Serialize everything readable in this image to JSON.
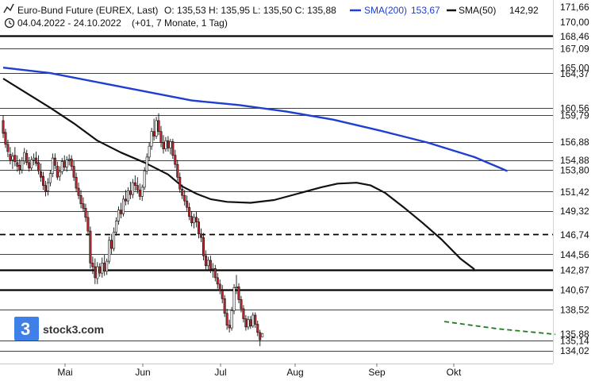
{
  "header": {
    "line1_title": "Euro-Bund Future (EUREX, Last)",
    "ohlc": "O: 135,53  H: 135,95  L: 135,50  C: 135,88",
    "sma200_label": "SMA(200)",
    "sma200_value": "153,67",
    "sma50_label": "SMA(50)",
    "sma50_value": "142,92",
    "date_range": "04.04.2022 - 24.10.2022",
    "period": "(+01, 7 Monate, 1 Tag)"
  },
  "logo": {
    "text": "stock3.com"
  },
  "colors": {
    "sma200": "#1f3fd0",
    "sma50": "#111111",
    "up": "#ffffff",
    "down": "#c0262c",
    "trend": "#1f7a1f",
    "grid": "#000000"
  },
  "chart_data": {
    "type": "candlestick",
    "x_months": [
      "Mai",
      "Jun",
      "Jul",
      "Aug",
      "Sep",
      "Okt"
    ],
    "y_axis_labels": [
      "171,66",
      "170,00",
      "168,46",
      "167,09",
      "165,00",
      "164,37",
      "160,56",
      "159,79",
      "156,88",
      "154,88",
      "153,80",
      "151,42",
      "149,32",
      "146,74",
      "144,56",
      "142,87",
      "140,67",
      "138,52",
      "135,88",
      "135,14",
      "134,02"
    ],
    "ylim": [
      132.6,
      172.4
    ],
    "horizontal_levels": [
      {
        "value": 168.46,
        "style": "thick"
      },
      {
        "value": 167.09,
        "style": "thin"
      },
      {
        "value": 164.37,
        "style": "thin"
      },
      {
        "value": 160.56,
        "style": "thin"
      },
      {
        "value": 159.79,
        "style": "thin"
      },
      {
        "value": 156.88,
        "style": "thin"
      },
      {
        "value": 154.88,
        "style": "thin"
      },
      {
        "value": 153.8,
        "style": "thin"
      },
      {
        "value": 151.42,
        "style": "thin"
      },
      {
        "value": 149.32,
        "style": "thin"
      },
      {
        "value": 146.74,
        "style": "dashed"
      },
      {
        "value": 144.56,
        "style": "thin"
      },
      {
        "value": 142.87,
        "style": "thick"
      },
      {
        "value": 140.67,
        "style": "thick"
      },
      {
        "value": 138.52,
        "style": "thin"
      },
      {
        "value": 135.14,
        "style": "thin"
      },
      {
        "value": 134.02,
        "style": "thin"
      }
    ],
    "candles": [
      {
        "o": 159.2,
        "h": 159.8,
        "l": 157.3,
        "c": 157.8
      },
      {
        "o": 157.9,
        "h": 158.3,
        "l": 156.2,
        "c": 156.6
      },
      {
        "o": 156.6,
        "h": 157.1,
        "l": 155.2,
        "c": 155.8
      },
      {
        "o": 155.5,
        "h": 156.3,
        "l": 154.4,
        "c": 154.9
      },
      {
        "o": 154.9,
        "h": 155.7,
        "l": 153.9,
        "c": 155.3
      },
      {
        "o": 155.4,
        "h": 156.3,
        "l": 154.2,
        "c": 154.7
      },
      {
        "o": 154.6,
        "h": 155.4,
        "l": 153.6,
        "c": 154.2
      },
      {
        "o": 154.3,
        "h": 155.0,
        "l": 153.3,
        "c": 153.8
      },
      {
        "o": 153.8,
        "h": 155.2,
        "l": 153.4,
        "c": 154.8
      },
      {
        "o": 154.8,
        "h": 156.2,
        "l": 154.4,
        "c": 155.7
      },
      {
        "o": 155.6,
        "h": 156.0,
        "l": 154.3,
        "c": 154.6
      },
      {
        "o": 154.6,
        "h": 155.2,
        "l": 153.6,
        "c": 154.0
      },
      {
        "o": 154.0,
        "h": 155.3,
        "l": 153.7,
        "c": 154.9
      },
      {
        "o": 154.9,
        "h": 155.6,
        "l": 154.3,
        "c": 155.1
      },
      {
        "o": 155.1,
        "h": 155.8,
        "l": 154.2,
        "c": 154.5
      },
      {
        "o": 154.6,
        "h": 155.4,
        "l": 153.3,
        "c": 153.7
      },
      {
        "o": 153.6,
        "h": 154.5,
        "l": 152.5,
        "c": 153.0
      },
      {
        "o": 153.1,
        "h": 153.6,
        "l": 151.6,
        "c": 152.1
      },
      {
        "o": 152.1,
        "h": 152.6,
        "l": 150.9,
        "c": 151.4
      },
      {
        "o": 151.5,
        "h": 152.9,
        "l": 151.0,
        "c": 152.4
      },
      {
        "o": 152.4,
        "h": 153.8,
        "l": 152.0,
        "c": 153.4
      },
      {
        "o": 153.4,
        "h": 155.6,
        "l": 153.0,
        "c": 155.1
      },
      {
        "o": 155.1,
        "h": 155.6,
        "l": 153.9,
        "c": 154.3
      },
      {
        "o": 154.2,
        "h": 154.7,
        "l": 152.7,
        "c": 153.0
      },
      {
        "o": 153.1,
        "h": 154.2,
        "l": 152.6,
        "c": 153.6
      },
      {
        "o": 153.6,
        "h": 155.1,
        "l": 153.3,
        "c": 154.7
      },
      {
        "o": 154.7,
        "h": 155.4,
        "l": 153.7,
        "c": 154.1
      },
      {
        "o": 154.1,
        "h": 155.3,
        "l": 153.6,
        "c": 154.9
      },
      {
        "o": 154.9,
        "h": 155.5,
        "l": 154.3,
        "c": 155.0
      },
      {
        "o": 155.0,
        "h": 155.4,
        "l": 153.8,
        "c": 154.2
      },
      {
        "o": 154.2,
        "h": 154.8,
        "l": 152.6,
        "c": 153.0
      },
      {
        "o": 153.0,
        "h": 153.5,
        "l": 151.4,
        "c": 151.8
      },
      {
        "o": 151.8,
        "h": 152.4,
        "l": 150.6,
        "c": 151.0
      },
      {
        "o": 151.0,
        "h": 151.6,
        "l": 149.6,
        "c": 150.1
      },
      {
        "o": 150.1,
        "h": 150.8,
        "l": 149.2,
        "c": 149.6
      },
      {
        "o": 149.6,
        "h": 150.1,
        "l": 148.1,
        "c": 148.6
      },
      {
        "o": 148.6,
        "h": 149.2,
        "l": 146.6,
        "c": 147.1
      },
      {
        "o": 147.1,
        "h": 147.6,
        "l": 143.0,
        "c": 143.6
      },
      {
        "o": 143.6,
        "h": 144.3,
        "l": 142.4,
        "c": 143.2
      },
      {
        "o": 143.2,
        "h": 144.1,
        "l": 141.3,
        "c": 142.0
      },
      {
        "o": 141.9,
        "h": 143.7,
        "l": 141.3,
        "c": 143.2
      },
      {
        "o": 143.2,
        "h": 143.6,
        "l": 142.1,
        "c": 142.5
      },
      {
        "o": 142.5,
        "h": 144.2,
        "l": 142.0,
        "c": 143.6
      },
      {
        "o": 143.6,
        "h": 144.5,
        "l": 142.2,
        "c": 142.7
      },
      {
        "o": 142.7,
        "h": 144.1,
        "l": 142.3,
        "c": 143.8
      },
      {
        "o": 143.8,
        "h": 146.5,
        "l": 143.5,
        "c": 146.1
      },
      {
        "o": 146.1,
        "h": 146.8,
        "l": 144.6,
        "c": 145.2
      },
      {
        "o": 145.2,
        "h": 147.5,
        "l": 144.9,
        "c": 147.0
      },
      {
        "o": 147.0,
        "h": 148.6,
        "l": 146.6,
        "c": 148.2
      },
      {
        "o": 148.2,
        "h": 149.8,
        "l": 147.8,
        "c": 149.4
      },
      {
        "o": 149.4,
        "h": 150.2,
        "l": 148.5,
        "c": 149.0
      },
      {
        "o": 149.0,
        "h": 151.0,
        "l": 148.7,
        "c": 150.6
      },
      {
        "o": 150.6,
        "h": 151.6,
        "l": 149.9,
        "c": 150.4
      },
      {
        "o": 150.4,
        "h": 151.9,
        "l": 150.0,
        "c": 151.5
      },
      {
        "o": 151.5,
        "h": 152.5,
        "l": 150.6,
        "c": 151.1
      },
      {
        "o": 151.1,
        "h": 152.8,
        "l": 150.7,
        "c": 152.4
      },
      {
        "o": 152.4,
        "h": 153.2,
        "l": 151.5,
        "c": 152.1
      },
      {
        "o": 152.1,
        "h": 153.0,
        "l": 151.2,
        "c": 151.6
      },
      {
        "o": 151.6,
        "h": 152.3,
        "l": 150.5,
        "c": 150.9
      },
      {
        "o": 150.9,
        "h": 152.2,
        "l": 150.4,
        "c": 151.9
      },
      {
        "o": 151.9,
        "h": 154.1,
        "l": 151.6,
        "c": 153.7
      },
      {
        "o": 153.7,
        "h": 155.6,
        "l": 153.3,
        "c": 155.2
      },
      {
        "o": 155.2,
        "h": 156.8,
        "l": 154.8,
        "c": 156.4
      },
      {
        "o": 156.4,
        "h": 158.4,
        "l": 156.0,
        "c": 158.0
      },
      {
        "o": 158.0,
        "h": 159.4,
        "l": 157.0,
        "c": 157.5
      },
      {
        "o": 157.5,
        "h": 159.6,
        "l": 157.2,
        "c": 159.2
      },
      {
        "o": 159.2,
        "h": 160.0,
        "l": 157.6,
        "c": 158.0
      },
      {
        "o": 158.0,
        "h": 158.6,
        "l": 156.3,
        "c": 156.8
      },
      {
        "o": 156.8,
        "h": 157.6,
        "l": 155.6,
        "c": 156.1
      },
      {
        "o": 156.1,
        "h": 157.4,
        "l": 155.8,
        "c": 157.0
      },
      {
        "o": 157.0,
        "h": 157.5,
        "l": 155.8,
        "c": 156.2
      },
      {
        "o": 156.2,
        "h": 157.2,
        "l": 155.5,
        "c": 156.9
      },
      {
        "o": 156.9,
        "h": 157.2,
        "l": 155.0,
        "c": 155.4
      },
      {
        "o": 155.4,
        "h": 156.0,
        "l": 154.0,
        "c": 154.4
      },
      {
        "o": 154.4,
        "h": 154.9,
        "l": 152.6,
        "c": 153.0
      },
      {
        "o": 153.0,
        "h": 153.5,
        "l": 151.3,
        "c": 151.7
      },
      {
        "o": 151.7,
        "h": 152.2,
        "l": 150.6,
        "c": 151.0
      },
      {
        "o": 151.0,
        "h": 151.6,
        "l": 149.9,
        "c": 150.4
      },
      {
        "o": 150.4,
        "h": 151.0,
        "l": 149.3,
        "c": 149.7
      },
      {
        "o": 149.7,
        "h": 150.2,
        "l": 148.3,
        "c": 148.7
      },
      {
        "o": 148.7,
        "h": 149.3,
        "l": 147.6,
        "c": 148.0
      },
      {
        "o": 148.0,
        "h": 149.0,
        "l": 147.4,
        "c": 148.6
      },
      {
        "o": 148.6,
        "h": 149.2,
        "l": 147.5,
        "c": 148.1
      },
      {
        "o": 148.1,
        "h": 148.5,
        "l": 146.3,
        "c": 146.8
      },
      {
        "o": 146.8,
        "h": 147.4,
        "l": 145.9,
        "c": 146.4
      },
      {
        "o": 146.4,
        "h": 146.9,
        "l": 143.9,
        "c": 144.4
      },
      {
        "o": 144.4,
        "h": 145.0,
        "l": 142.8,
        "c": 143.3
      },
      {
        "o": 143.3,
        "h": 144.3,
        "l": 142.9,
        "c": 143.9
      },
      {
        "o": 143.9,
        "h": 144.4,
        "l": 142.5,
        "c": 142.9
      },
      {
        "o": 142.9,
        "h": 143.6,
        "l": 142.0,
        "c": 143.0
      },
      {
        "o": 143.0,
        "h": 143.4,
        "l": 141.6,
        "c": 142.0
      },
      {
        "o": 142.0,
        "h": 142.5,
        "l": 140.8,
        "c": 141.3
      },
      {
        "o": 141.3,
        "h": 141.8,
        "l": 140.2,
        "c": 140.6
      },
      {
        "o": 140.6,
        "h": 141.2,
        "l": 139.2,
        "c": 139.7
      },
      {
        "o": 139.7,
        "h": 140.1,
        "l": 137.7,
        "c": 138.1
      },
      {
        "o": 138.1,
        "h": 138.6,
        "l": 136.3,
        "c": 136.8
      },
      {
        "o": 136.8,
        "h": 137.4,
        "l": 136.0,
        "c": 136.5
      },
      {
        "o": 136.5,
        "h": 138.8,
        "l": 136.2,
        "c": 138.4
      },
      {
        "o": 138.4,
        "h": 141.3,
        "l": 138.0,
        "c": 140.9
      },
      {
        "o": 140.9,
        "h": 142.3,
        "l": 140.2,
        "c": 141.0
      },
      {
        "o": 141.0,
        "h": 141.4,
        "l": 139.2,
        "c": 139.6
      },
      {
        "o": 139.6,
        "h": 140.0,
        "l": 138.2,
        "c": 138.6
      },
      {
        "o": 138.6,
        "h": 139.0,
        "l": 137.1,
        "c": 137.5
      },
      {
        "o": 137.5,
        "h": 137.9,
        "l": 136.2,
        "c": 136.6
      },
      {
        "o": 136.6,
        "h": 137.8,
        "l": 136.3,
        "c": 137.4
      },
      {
        "o": 137.4,
        "h": 137.8,
        "l": 136.4,
        "c": 136.7
      },
      {
        "o": 136.7,
        "h": 138.2,
        "l": 136.5,
        "c": 137.9
      },
      {
        "o": 137.9,
        "h": 138.2,
        "l": 136.5,
        "c": 136.9
      },
      {
        "o": 136.9,
        "h": 137.3,
        "l": 135.6,
        "c": 136.0
      },
      {
        "o": 136.0,
        "h": 136.3,
        "l": 134.5,
        "c": 135.2
      },
      {
        "o": 135.53,
        "h": 135.95,
        "l": 135.5,
        "c": 135.88
      }
    ],
    "sma200": [
      [
        0,
        165.0
      ],
      [
        20,
        164.4
      ],
      [
        50,
        162.9
      ],
      [
        80,
        161.4
      ],
      [
        100,
        160.9
      ],
      [
        120,
        160.2
      ],
      [
        140,
        159.3
      ],
      [
        160,
        158.1
      ],
      [
        180,
        156.8
      ],
      [
        200,
        155.2
      ],
      [
        214,
        153.67
      ]
    ],
    "sma50": [
      [
        0,
        163.8
      ],
      [
        10,
        162.2
      ],
      [
        20,
        160.6
      ],
      [
        30,
        158.9
      ],
      [
        40,
        157.0
      ],
      [
        50,
        155.7
      ],
      [
        60,
        154.6
      ],
      [
        70,
        153.3
      ],
      [
        76,
        152.0
      ],
      [
        82,
        151.2
      ],
      [
        88,
        150.6
      ],
      [
        95,
        150.3
      ],
      [
        105,
        150.2
      ],
      [
        115,
        150.5
      ],
      [
        125,
        151.2
      ],
      [
        135,
        151.9
      ],
      [
        142,
        152.3
      ],
      [
        150,
        152.4
      ],
      [
        156,
        152.1
      ],
      [
        162,
        151.3
      ],
      [
        170,
        149.7
      ],
      [
        178,
        148.0
      ],
      [
        186,
        146.2
      ],
      [
        194,
        144.1
      ],
      [
        200,
        142.92
      ]
    ],
    "trendline": [
      [
        1,
        137.2
      ],
      [
        22,
        136.4
      ],
      [
        26,
        135.8
      ]
    ]
  }
}
